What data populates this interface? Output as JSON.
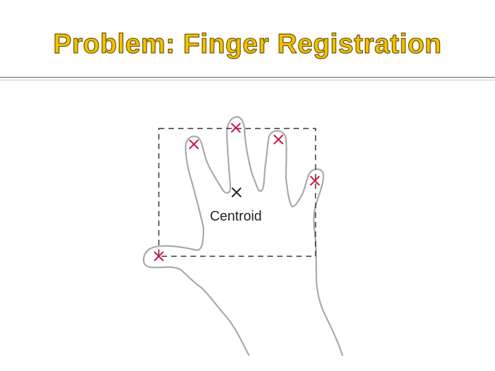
{
  "slide": {
    "title": "Problem: Finger Registration"
  },
  "diagram": {
    "centroid_label": "Centroid",
    "colors": {
      "title_fill": "#f2c200",
      "title_outline": "#6b5200",
      "hand_outline": "#a8a8a8",
      "bounding_box": "#333333",
      "fingertip_marker": "#d0103a",
      "centroid_marker": "#222222"
    },
    "icons": {
      "fingertip_marker": "x-mark-icon",
      "centroid_marker": "x-mark-icon"
    }
  }
}
